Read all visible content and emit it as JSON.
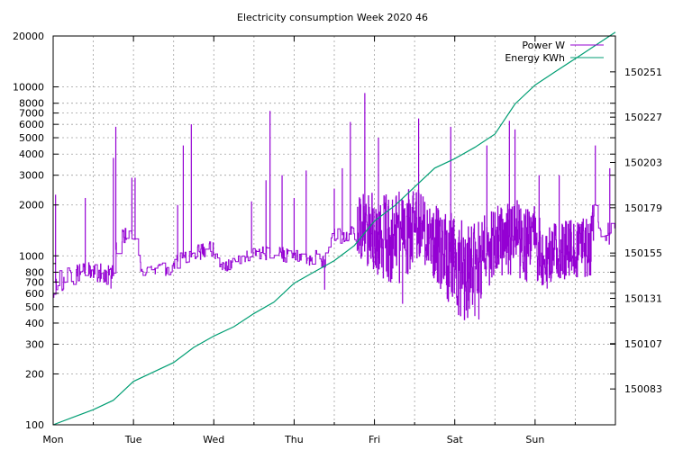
{
  "chart_data": {
    "type": "line",
    "title": "Electricity consumption Week 2020 46",
    "grid": true,
    "legend_position": "top-right",
    "x_axis": {
      "range": [
        0,
        7
      ],
      "tick_labels": [
        "Mon",
        "Tue",
        "Wed",
        "Thu",
        "Fri",
        "Sat",
        "Sun"
      ],
      "tick_positions": [
        0,
        1,
        2,
        3,
        4,
        5,
        6
      ],
      "minor_ticks": [
        0.5,
        1.5,
        2.5,
        3.5,
        4.5,
        5.5,
        6.5
      ]
    },
    "y_axis_left": {
      "scale": "log",
      "range": [
        100,
        20000
      ],
      "ticks": [
        100,
        200,
        300,
        400,
        500,
        600,
        700,
        800,
        1000,
        2000,
        3000,
        4000,
        5000,
        6000,
        7000,
        8000,
        10000,
        20000
      ],
      "tick_labels": [
        "100",
        "200",
        "300",
        "400",
        "500",
        "600",
        "700",
        "800",
        "1000",
        "2000",
        "3000",
        "4000",
        "5000",
        "6000",
        "7000",
        "8000",
        "10000",
        "20000"
      ]
    },
    "y_axis_right": {
      "scale": "linear",
      "range": [
        150064,
        150270
      ],
      "ticks": [
        150083,
        150107,
        150131,
        150155,
        150179,
        150203,
        150227,
        150251
      ],
      "tick_labels": [
        "150083",
        "150107",
        "150131",
        "150155",
        "150179",
        "150203",
        "150227",
        "150251"
      ]
    },
    "series": [
      {
        "name": "Power W",
        "axis": "left",
        "color": "#9400d3",
        "x_unit": "days since Monday 00:00",
        "y_unit": "W",
        "profile": [
          {
            "x": 0.0,
            "base": 680,
            "spread": 1.35
          },
          {
            "x": 0.4,
            "base": 820,
            "spread": 1.2
          },
          {
            "x": 0.75,
            "base": 760,
            "spread": 1.3
          },
          {
            "x": 0.8,
            "base": 1300,
            "spread": 1.25
          },
          {
            "x": 1.0,
            "base": 1350,
            "spread": 1.15
          },
          {
            "x": 1.1,
            "base": 800,
            "spread": 1.1
          },
          {
            "x": 1.5,
            "base": 850,
            "spread": 1.2
          },
          {
            "x": 1.6,
            "base": 1000,
            "spread": 1.2
          },
          {
            "x": 2.0,
            "base": 1100,
            "spread": 1.2
          },
          {
            "x": 2.1,
            "base": 850,
            "spread": 1.15
          },
          {
            "x": 2.5,
            "base": 1050,
            "spread": 1.15
          },
          {
            "x": 3.0,
            "base": 1000,
            "spread": 1.2
          },
          {
            "x": 3.4,
            "base": 950,
            "spread": 1.2
          },
          {
            "x": 3.45,
            "base": 1300,
            "spread": 1.2
          },
          {
            "x": 3.75,
            "base": 1350,
            "spread": 1.2
          },
          {
            "x": 3.8,
            "base": 1500,
            "spread": 1.6
          },
          {
            "x": 4.1,
            "base": 1300,
            "spread": 1.8
          },
          {
            "x": 4.35,
            "base": 1200,
            "spread": 2.0
          },
          {
            "x": 4.5,
            "base": 1600,
            "spread": 1.6
          },
          {
            "x": 4.7,
            "base": 1200,
            "spread": 1.7
          },
          {
            "x": 4.9,
            "base": 1000,
            "spread": 1.9
          },
          {
            "x": 5.1,
            "base": 800,
            "spread": 2.0
          },
          {
            "x": 5.3,
            "base": 900,
            "spread": 1.8
          },
          {
            "x": 5.5,
            "base": 1200,
            "spread": 1.6
          },
          {
            "x": 5.7,
            "base": 1300,
            "spread": 1.7
          },
          {
            "x": 6.0,
            "base": 1150,
            "spread": 1.7
          },
          {
            "x": 6.1,
            "base": 1000,
            "spread": 1.5
          },
          {
            "x": 6.7,
            "base": 1150,
            "spread": 1.5
          },
          {
            "x": 6.75,
            "base": 2000,
            "spread": 1.4
          },
          {
            "x": 6.85,
            "base": 1300,
            "spread": 1.4
          },
          {
            "x": 7.0,
            "base": 1350,
            "spread": 1.4
          }
        ],
        "spikes": [
          {
            "x": 0.03,
            "y": 2300
          },
          {
            "x": 0.4,
            "y": 2200
          },
          {
            "x": 0.75,
            "y": 3800
          },
          {
            "x": 0.78,
            "y": 5800
          },
          {
            "x": 0.98,
            "y": 2900
          },
          {
            "x": 1.02,
            "y": 2900
          },
          {
            "x": 1.55,
            "y": 2000
          },
          {
            "x": 1.62,
            "y": 4500
          },
          {
            "x": 1.72,
            "y": 6000
          },
          {
            "x": 2.47,
            "y": 2100
          },
          {
            "x": 2.65,
            "y": 2800
          },
          {
            "x": 2.7,
            "y": 7200
          },
          {
            "x": 2.85,
            "y": 3000
          },
          {
            "x": 3.0,
            "y": 2200
          },
          {
            "x": 3.15,
            "y": 3200
          },
          {
            "x": 3.5,
            "y": 2500
          },
          {
            "x": 3.6,
            "y": 3300
          },
          {
            "x": 3.7,
            "y": 6200
          },
          {
            "x": 3.88,
            "y": 9200
          },
          {
            "x": 4.05,
            "y": 5000
          },
          {
            "x": 4.55,
            "y": 6500
          },
          {
            "x": 4.95,
            "y": 5800
          },
          {
            "x": 5.4,
            "y": 4500
          },
          {
            "x": 5.68,
            "y": 6300
          },
          {
            "x": 5.75,
            "y": 5600
          },
          {
            "x": 6.05,
            "y": 3000
          },
          {
            "x": 6.3,
            "y": 3000
          },
          {
            "x": 6.75,
            "y": 4500
          },
          {
            "x": 6.93,
            "y": 3300
          }
        ],
        "dips": [
          {
            "x": 0.72,
            "y": 640
          },
          {
            "x": 3.38,
            "y": 630
          },
          {
            "x": 4.35,
            "y": 520
          },
          {
            "x": 5.25,
            "y": 440
          },
          {
            "x": 5.3,
            "y": 420
          },
          {
            "x": 6.15,
            "y": 640
          }
        ]
      },
      {
        "name": "Energy KWh",
        "axis": "right",
        "color": "#009e73",
        "x": [
          0.0,
          0.25,
          0.5,
          0.75,
          1.0,
          1.25,
          1.5,
          1.75,
          2.0,
          2.25,
          2.5,
          2.75,
          3.0,
          3.25,
          3.5,
          3.75,
          4.0,
          4.25,
          4.5,
          4.75,
          5.0,
          5.25,
          5.5,
          5.75,
          6.0,
          6.25,
          6.5,
          6.75,
          7.0
        ],
        "values": [
          150064,
          150068,
          150072,
          150077,
          150087,
          150092,
          150097,
          150105,
          150111,
          150116,
          150123,
          150129,
          150139,
          150145,
          150151,
          150159,
          150172,
          150180,
          150190,
          150200,
          150205,
          150211,
          150218,
          150234,
          150244,
          150251,
          150258,
          150265,
          150272
        ]
      }
    ]
  }
}
